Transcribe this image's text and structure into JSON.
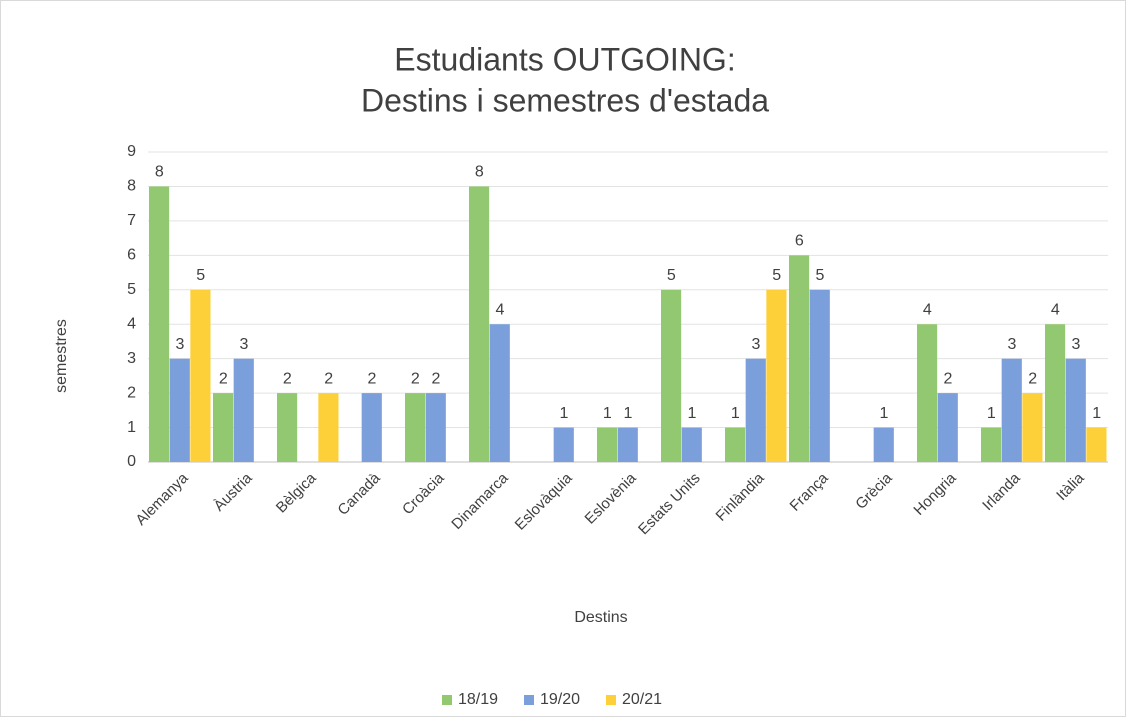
{
  "chart_data": {
    "type": "bar",
    "title": [
      "Estudiants OUTGOING:",
      "Destins i semestres d'estada"
    ],
    "x_label": "Destins",
    "y_label": "semestres",
    "categories": [
      "Alemanya",
      "Àustria",
      "Bèlgica",
      "Canadà",
      "Croàcia",
      "Dinamarca",
      "Eslovàquia",
      "Eslovènia",
      "Estats Units",
      "Finlàndia",
      "França",
      "Grècia",
      "Hongria",
      "Irlanda",
      "Itàlia"
    ],
    "series": [
      {
        "name": "18/19",
        "color": "#92c86f",
        "values": [
          8,
          2,
          2,
          null,
          2,
          8,
          null,
          1,
          5,
          1,
          6,
          null,
          4,
          1,
          4
        ]
      },
      {
        "name": "19/20",
        "color": "#7b9fdb",
        "values": [
          3,
          3,
          null,
          2,
          2,
          4,
          1,
          1,
          1,
          3,
          5,
          1,
          2,
          3,
          3
        ]
      },
      {
        "name": "20/21",
        "color": "#fdd03a",
        "values": [
          5,
          null,
          2,
          null,
          null,
          null,
          null,
          null,
          null,
          5,
          null,
          null,
          null,
          2,
          1
        ]
      }
    ],
    "ylim": [
      0,
      9
    ],
    "yticks": [
      0,
      1,
      2,
      3,
      4,
      5,
      6,
      7,
      8,
      9
    ],
    "grid": true,
    "legend": "bottom"
  }
}
